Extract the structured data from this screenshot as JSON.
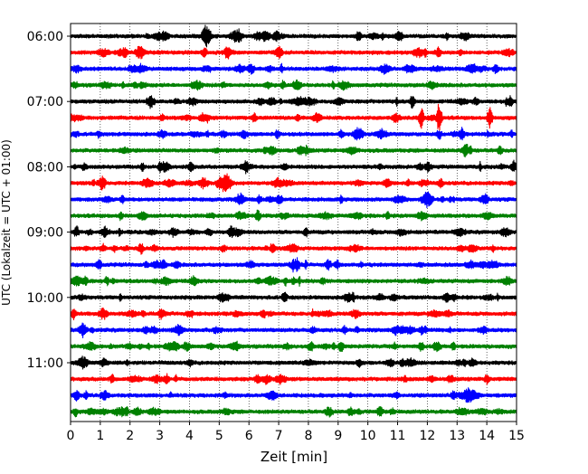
{
  "chart_data": {
    "type": "line",
    "xlabel": "Zeit  [min]",
    "ylabel": "UTC (Lokalzeit = UTC + 01:00)",
    "xlim": [
      0,
      15
    ],
    "x_ticks": [
      "0",
      "1",
      "2",
      "3",
      "4",
      "5",
      "6",
      "7",
      "8",
      "9",
      "10",
      "11",
      "12",
      "13",
      "14",
      "15"
    ],
    "y_ticks": [
      "06:00",
      "07:00",
      "08:00",
      "09:00",
      "10:00",
      "11:00"
    ],
    "grid": "vertical dotted",
    "trace_colors": [
      "#000000",
      "#ff0000",
      "#0000ff",
      "#008000"
    ],
    "trace_start_times": [
      "06:00",
      "06:15",
      "06:30",
      "06:45",
      "07:00",
      "07:15",
      "07:30",
      "07:45",
      "08:00",
      "08:15",
      "08:30",
      "08:45",
      "09:00",
      "09:15",
      "09:30",
      "09:45",
      "10:00",
      "10:15",
      "10:30",
      "10:45",
      "11:00",
      "11:15",
      "11:30",
      "11:45"
    ],
    "notable_events": [
      {
        "trace": "06:00",
        "x": 4.5,
        "amp": 0.5
      },
      {
        "trace": "06:00",
        "x": 6.9,
        "amp": 0.4
      },
      {
        "trace": "06:00",
        "x": 9.7,
        "amp": 0.45
      },
      {
        "trace": "06:15",
        "x": 4.5,
        "amp": 0.35
      },
      {
        "trace": "06:30",
        "x": 2.1,
        "amp": 0.3
      },
      {
        "trace": "06:30",
        "x": 14.3,
        "amp": 0.4
      },
      {
        "trace": "07:00",
        "x": 11.5,
        "amp": 0.6
      },
      {
        "trace": "07:00",
        "x": 14.8,
        "amp": 0.5
      },
      {
        "trace": "07:15",
        "x": 4.6,
        "amp": 0.35
      },
      {
        "trace": "07:15",
        "x": 10.9,
        "amp": 0.35
      },
      {
        "trace": "07:15",
        "x": 11.8,
        "amp": 1.0
      },
      {
        "trace": "07:15",
        "x": 12.4,
        "amp": 1.5
      },
      {
        "trace": "07:15",
        "x": 14.1,
        "amp": 1.0
      },
      {
        "trace": "07:30",
        "x": 12.4,
        "amp": 0.35
      },
      {
        "trace": "08:00",
        "x": 14.9,
        "amp": 0.5
      },
      {
        "trace": "08:15",
        "x": 1.1,
        "amp": 0.6
      },
      {
        "trace": "08:45",
        "x": 6.3,
        "amp": 0.45
      },
      {
        "trace": "09:00",
        "x": 0.2,
        "amp": 0.45
      },
      {
        "trace": "09:00",
        "x": 5.4,
        "amp": 0.45
      },
      {
        "trace": "09:15",
        "x": 6.8,
        "amp": 0.55
      },
      {
        "trace": "09:15",
        "x": 1.1,
        "amp": 0.3
      },
      {
        "trace": "09:45",
        "x": 0.5,
        "amp": 0.35
      },
      {
        "trace": "10:00",
        "x": 7.2,
        "amp": 0.45
      },
      {
        "trace": "10:15",
        "x": 0.1,
        "amp": 0.4
      },
      {
        "trace": "10:30",
        "x": 11.8,
        "amp": 0.35
      },
      {
        "trace": "10:45",
        "x": 9.1,
        "amp": 0.45
      },
      {
        "trace": "10:45",
        "x": 11.8,
        "amp": 0.4
      },
      {
        "trace": "11:00",
        "x": 9.7,
        "amp": 0.35
      },
      {
        "trace": "11:15",
        "x": 14.0,
        "amp": 0.35
      }
    ]
  }
}
